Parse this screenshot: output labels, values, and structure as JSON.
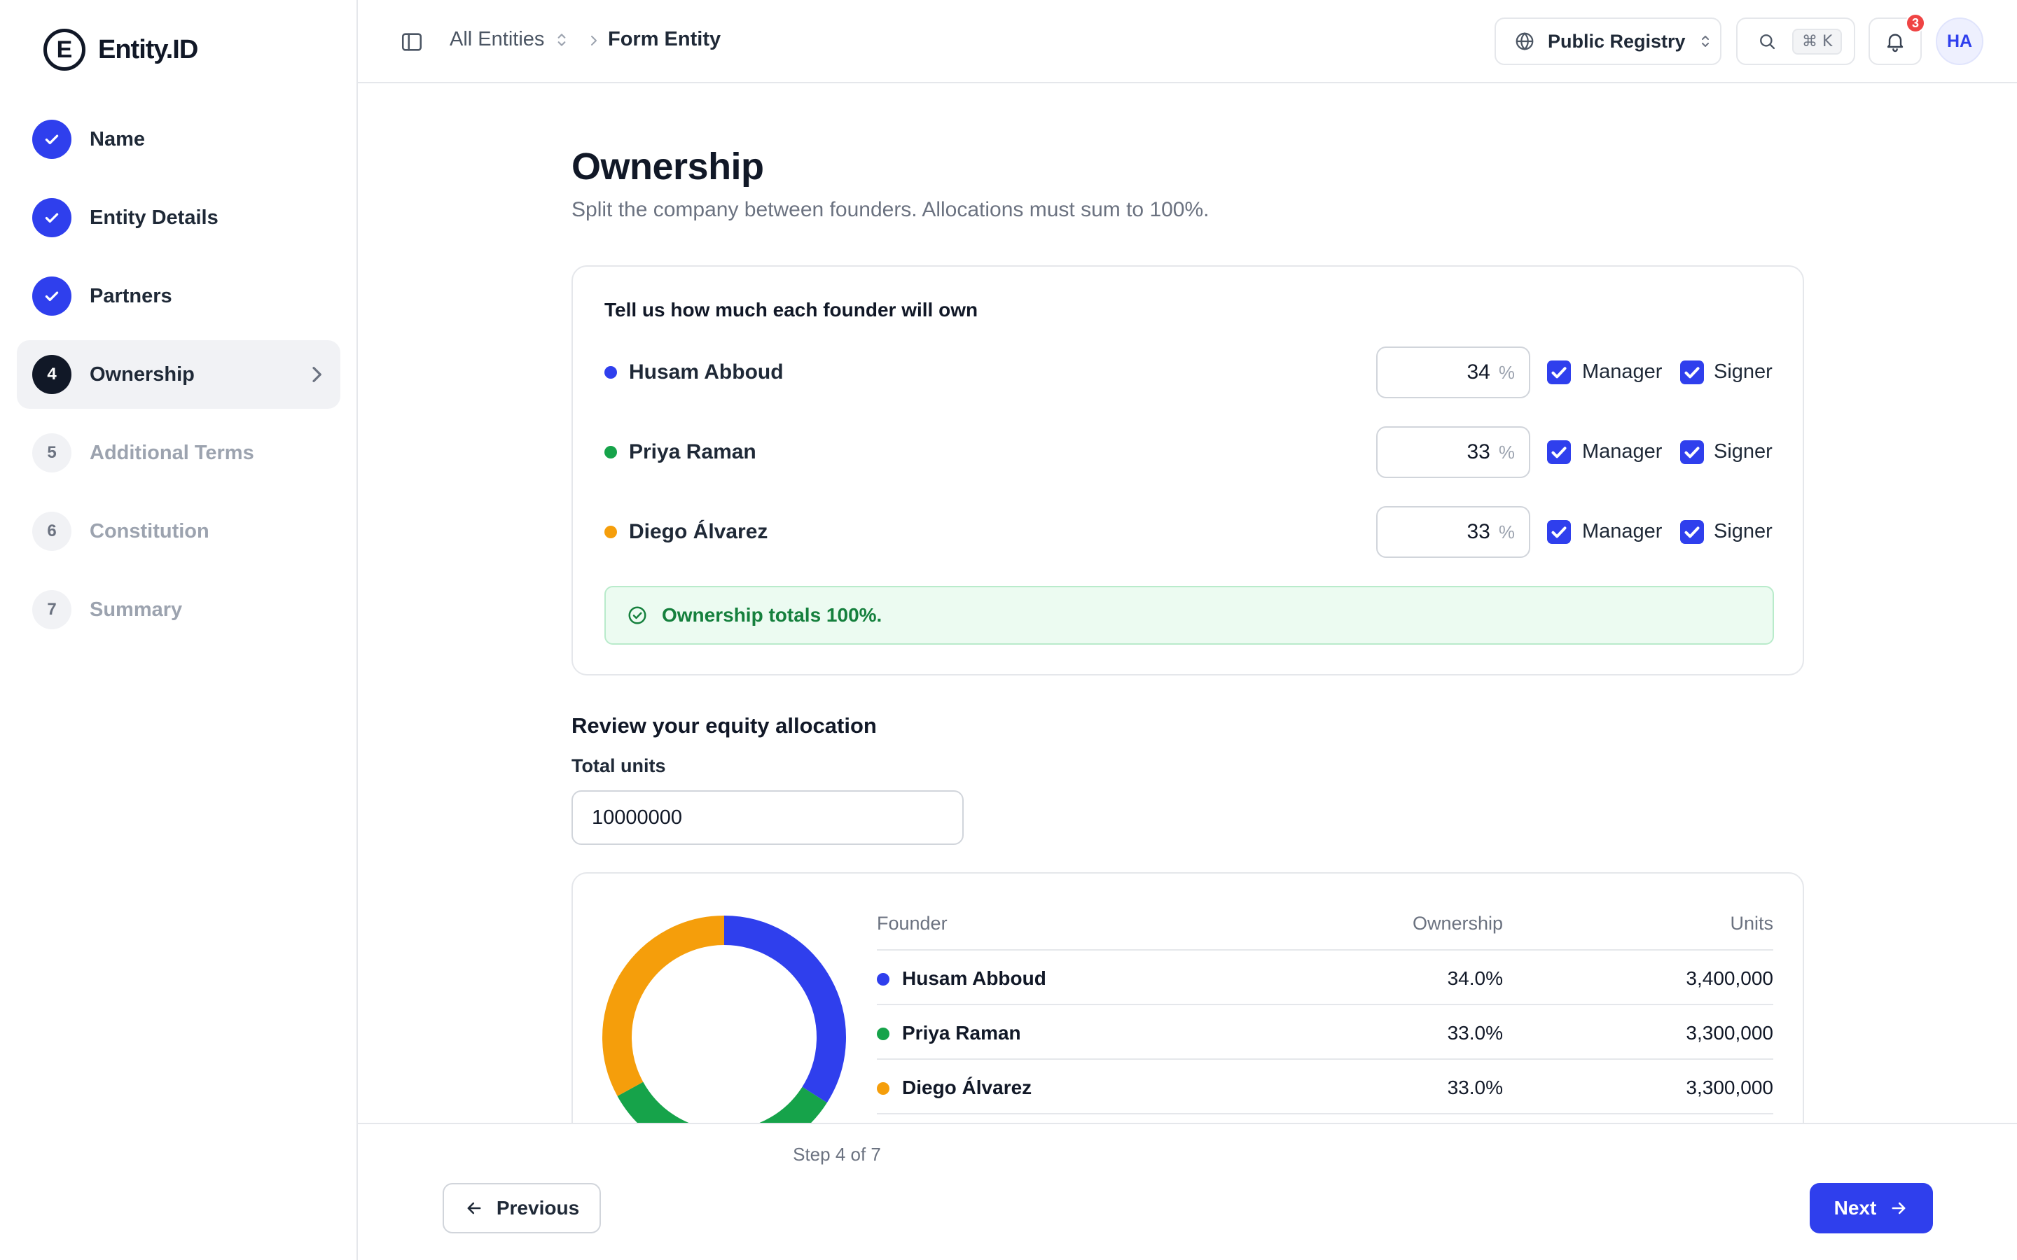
{
  "app": {
    "logo_letter": "E",
    "name": "Entity.ID"
  },
  "sidebar": {
    "steps": [
      {
        "number": "1",
        "label": "Name",
        "state": "done"
      },
      {
        "number": "2",
        "label": "Entity Details",
        "state": "done"
      },
      {
        "number": "3",
        "label": "Partners",
        "state": "done"
      },
      {
        "number": "4",
        "label": "Ownership",
        "state": "active"
      },
      {
        "number": "5",
        "label": "Additional Terms",
        "state": "todo"
      },
      {
        "number": "6",
        "label": "Constitution",
        "state": "todo"
      },
      {
        "number": "7",
        "label": "Summary",
        "state": "todo"
      }
    ]
  },
  "header": {
    "breadcrumb_root": "All Entities",
    "breadcrumb_current": "Form Entity",
    "registry_label": "Public Registry",
    "search_shortcut": "⌘ K",
    "notification_count": "3",
    "avatar_initials": "HA"
  },
  "main": {
    "title": "Ownership",
    "subtitle": "Split the company between founders. Allocations must sum to 100%.",
    "allocation_card": {
      "title": "Tell us how much each founder will own",
      "manager_label": "Manager",
      "signer_label": "Signer",
      "percent_sign": "%",
      "founders": [
        {
          "name": "Husam Abboud",
          "percent": "34",
          "manager": true,
          "signer": true,
          "color": "#2f3fed"
        },
        {
          "name": "Priya Raman",
          "percent": "33",
          "manager": true,
          "signer": true,
          "color": "#16a34a"
        },
        {
          "name": "Diego Álvarez",
          "percent": "33",
          "manager": true,
          "signer": true,
          "color": "#f59e0b"
        }
      ],
      "status_message": "Ownership totals 100%."
    },
    "review": {
      "title": "Review your equity allocation",
      "total_units_label": "Total units",
      "total_units_value": "10000000",
      "table": {
        "headers": {
          "founder": "Founder",
          "ownership": "Ownership",
          "units": "Units"
        },
        "rows": [
          {
            "name": "Husam Abboud",
            "ownership": "34.0%",
            "units": "3,400,000",
            "color": "#2f3fed"
          },
          {
            "name": "Priya Raman",
            "ownership": "33.0%",
            "units": "3,300,000",
            "color": "#16a34a"
          },
          {
            "name": "Diego Álvarez",
            "ownership": "33.0%",
            "units": "3,300,000",
            "color": "#f59e0b"
          }
        ]
      },
      "donut": {
        "values": [
          34,
          33,
          33
        ],
        "colors": [
          "#2f3fed",
          "#16a34a",
          "#f59e0b"
        ]
      }
    }
  },
  "footer": {
    "step_indicator": "Step 4 of 7",
    "previous_label": "Previous",
    "next_label": "Next"
  },
  "colors": {
    "accent": "#2f3fed",
    "success": "#15803d",
    "success_bg": "#ecfbf1"
  }
}
